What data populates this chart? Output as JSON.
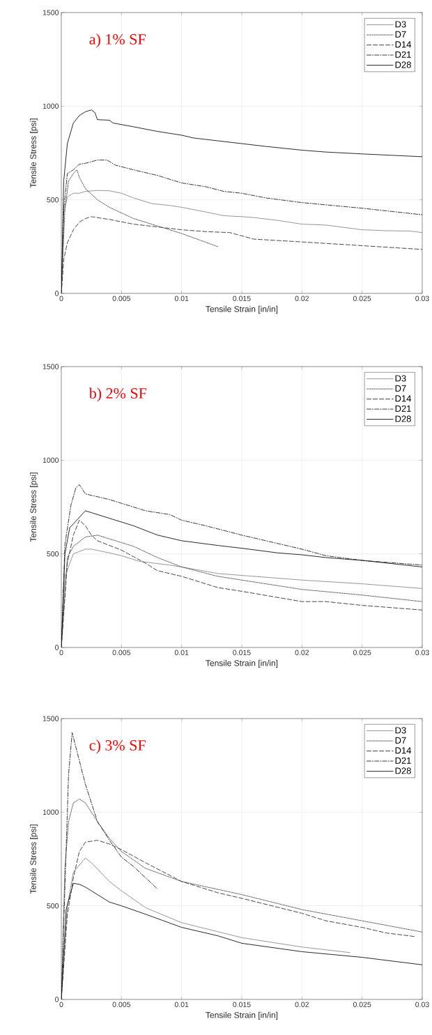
{
  "chart_data": [
    {
      "type": "line",
      "title": "a) 1% SF",
      "xlabel": "Tensile Strain [in/in]",
      "ylabel": "Tensile Stress [psi]",
      "xlim": [
        0,
        0.03
      ],
      "ylim": [
        0,
        1500
      ],
      "xticks": [
        0,
        0.005,
        0.01,
        0.015,
        0.02,
        0.025,
        0.03
      ],
      "yticks": [
        0,
        500,
        1000,
        1500
      ],
      "grid": true,
      "legend": "top right",
      "series": [
        {
          "name": "D3",
          "color": "#8a8a8a",
          "line_style": "solid",
          "x": [
            0,
            0.0002,
            0.0005,
            0.001,
            0.0015,
            0.002,
            0.003,
            0.004,
            0.005,
            0.006,
            0.0075,
            0.009,
            0.01,
            0.012,
            0.0135,
            0.015,
            0.016,
            0.018,
            0.02,
            0.022,
            0.025,
            0.027,
            0.029,
            0.03
          ],
          "values": [
            0,
            430,
            515,
            535,
            535,
            545,
            550,
            548,
            535,
            510,
            480,
            470,
            460,
            435,
            415,
            410,
            405,
            390,
            370,
            365,
            340,
            335,
            333,
            325
          ]
        },
        {
          "name": "D7",
          "color": "#444444",
          "line_style": "dotted",
          "x": [
            0,
            0.0003,
            0.0006,
            0.001,
            0.0013,
            0.0015,
            0.002,
            0.003,
            0.004,
            0.005,
            0.006,
            0.008,
            0.01,
            0.0115,
            0.013
          ],
          "values": [
            0,
            450,
            600,
            640,
            660,
            620,
            560,
            500,
            460,
            430,
            400,
            360,
            320,
            285,
            250
          ]
        },
        {
          "name": "D14",
          "color": "#333333",
          "line_style": "dashed",
          "x": [
            0,
            0.0002,
            0.0005,
            0.001,
            0.0015,
            0.002,
            0.0025,
            0.004,
            0.006,
            0.008,
            0.01,
            0.012,
            0.014,
            0.016,
            0.02,
            0.025,
            0.03
          ],
          "values": [
            0,
            180,
            270,
            340,
            380,
            400,
            410,
            395,
            370,
            355,
            340,
            330,
            325,
            290,
            275,
            255,
            235
          ]
        },
        {
          "name": "D21",
          "color": "#222222",
          "line_style": "dashdot",
          "x": [
            0,
            0.0002,
            0.0005,
            0.001,
            0.0015,
            0.002,
            0.003,
            0.0038,
            0.0045,
            0.006,
            0.008,
            0.01,
            0.012,
            0.0135,
            0.015,
            0.017,
            0.02,
            0.025,
            0.03
          ],
          "values": [
            0,
            450,
            640,
            660,
            690,
            695,
            712,
            712,
            685,
            660,
            630,
            590,
            570,
            545,
            535,
            510,
            485,
            455,
            420
          ]
        },
        {
          "name": "D28",
          "color": "#111111",
          "line_style": "solid",
          "x": [
            0,
            0.0002,
            0.0005,
            0.001,
            0.0015,
            0.002,
            0.0025,
            0.0028,
            0.003,
            0.004,
            0.0043,
            0.006,
            0.008,
            0.01,
            0.011,
            0.013,
            0.015,
            0.017,
            0.02,
            0.022,
            0.025,
            0.03
          ],
          "values": [
            0,
            600,
            800,
            910,
            950,
            970,
            980,
            965,
            928,
            925,
            910,
            890,
            865,
            845,
            830,
            815,
            800,
            785,
            765,
            755,
            745,
            730
          ]
        }
      ]
    },
    {
      "type": "line",
      "title": "b) 2% SF",
      "xlabel": "Tensile Strain [in/in]",
      "ylabel": "Tensile Stress [psi]",
      "xlim": [
        0,
        0.03
      ],
      "ylim": [
        0,
        1500
      ],
      "xticks": [
        0,
        0.005,
        0.01,
        0.015,
        0.02,
        0.025,
        0.03
      ],
      "yticks": [
        0,
        500,
        1000,
        1500
      ],
      "grid": true,
      "legend": "top right",
      "series": [
        {
          "name": "D3",
          "color": "#8a8a8a",
          "line_style": "solid",
          "x": [
            0,
            0.0003,
            0.001,
            0.002,
            0.0025,
            0.004,
            0.005,
            0.0065,
            0.009,
            0.01,
            0.013,
            0.015,
            0.02,
            0.025,
            0.03
          ],
          "values": [
            0,
            380,
            500,
            525,
            525,
            505,
            490,
            460,
            440,
            430,
            395,
            385,
            360,
            340,
            315
          ]
        },
        {
          "name": "D7",
          "color": "#444444",
          "line_style": "dotted",
          "x": [
            0,
            0.0005,
            0.001,
            0.002,
            0.003,
            0.004,
            0.005,
            0.006,
            0.008,
            0.01,
            0.013,
            0.015,
            0.02,
            0.025,
            0.03
          ],
          "values": [
            0,
            480,
            540,
            590,
            600,
            580,
            560,
            540,
            480,
            430,
            380,
            360,
            310,
            280,
            245
          ]
        },
        {
          "name": "D14",
          "color": "#333333",
          "line_style": "dashed",
          "x": [
            0,
            0.0005,
            0.001,
            0.0015,
            0.002,
            0.0025,
            0.003,
            0.005,
            0.007,
            0.008,
            0.01,
            0.013,
            0.015,
            0.02,
            0.022,
            0.025,
            0.03
          ],
          "values": [
            0,
            450,
            600,
            680,
            650,
            600,
            570,
            520,
            450,
            410,
            380,
            320,
            300,
            245,
            245,
            225,
            200
          ]
        },
        {
          "name": "D21",
          "color": "#222222",
          "line_style": "dashdot",
          "x": [
            0,
            0.0003,
            0.0008,
            0.0012,
            0.0015,
            0.0018,
            0.002,
            0.004,
            0.005,
            0.007,
            0.009,
            0.01,
            0.012,
            0.015,
            0.019,
            0.02,
            0.022,
            0.025,
            0.03
          ],
          "values": [
            0,
            550,
            760,
            850,
            870,
            840,
            820,
            790,
            770,
            730,
            710,
            680,
            650,
            600,
            540,
            525,
            490,
            465,
            440
          ]
        },
        {
          "name": "D28",
          "color": "#111111",
          "line_style": "solid",
          "x": [
            0,
            0.0003,
            0.0007,
            0.001,
            0.002,
            0.0025,
            0.004,
            0.006,
            0.008,
            0.01,
            0.013,
            0.015,
            0.018,
            0.02,
            0.022,
            0.025,
            0.03
          ],
          "values": [
            0,
            500,
            640,
            660,
            730,
            720,
            690,
            650,
            600,
            570,
            545,
            530,
            505,
            495,
            480,
            465,
            430
          ]
        }
      ]
    },
    {
      "type": "line",
      "title": "c) 3% SF",
      "xlabel": "Tensile Strain [in/in]",
      "ylabel": "Tensile Stress [psi]",
      "xlim": [
        0,
        0.03
      ],
      "ylim": [
        0,
        1500
      ],
      "xticks": [
        0,
        0.005,
        0.01,
        0.015,
        0.02,
        0.025,
        0.03
      ],
      "yticks": [
        0,
        500,
        1000,
        1500
      ],
      "grid": true,
      "legend": "top right",
      "series": [
        {
          "name": "D3",
          "color": "#8a8a8a",
          "line_style": "solid",
          "x": [
            0,
            0.0005,
            0.001,
            0.002,
            0.0025,
            0.004,
            0.005,
            0.007,
            0.01,
            0.015,
            0.02,
            0.024
          ],
          "values": [
            0,
            500,
            680,
            755,
            730,
            630,
            580,
            490,
            410,
            330,
            280,
            250
          ]
        },
        {
          "name": "D7",
          "color": "#444444",
          "line_style": "dotted",
          "x": [
            0,
            0.0003,
            0.0006,
            0.001,
            0.0015,
            0.002,
            0.003,
            0.004,
            0.005,
            0.007,
            0.01,
            0.015,
            0.02,
            0.025,
            0.03
          ],
          "values": [
            0,
            700,
            950,
            1050,
            1070,
            1050,
            950,
            860,
            790,
            700,
            630,
            560,
            480,
            420,
            360
          ]
        },
        {
          "name": "D14",
          "color": "#333333",
          "line_style": "dashed",
          "x": [
            0,
            0.0005,
            0.001,
            0.0015,
            0.002,
            0.003,
            0.004,
            0.005,
            0.007,
            0.01,
            0.013,
            0.015,
            0.02,
            0.022,
            0.025,
            0.027,
            0.0295
          ],
          "values": [
            0,
            450,
            650,
            790,
            840,
            850,
            830,
            800,
            730,
            630,
            570,
            540,
            460,
            420,
            385,
            355,
            335
          ]
        },
        {
          "name": "D21",
          "color": "#222222",
          "line_style": "dashdot",
          "x": [
            0,
            0.0003,
            0.0006,
            0.0009,
            0.0012,
            0.002,
            0.003,
            0.004,
            0.005,
            0.006,
            0.007,
            0.008
          ],
          "values": [
            0,
            600,
            1200,
            1425,
            1350,
            1150,
            950,
            850,
            760,
            710,
            650,
            590
          ]
        },
        {
          "name": "D28",
          "color": "#111111",
          "line_style": "solid",
          "x": [
            0,
            0.0004,
            0.001,
            0.0015,
            0.002,
            0.003,
            0.004,
            0.005,
            0.007,
            0.01,
            0.013,
            0.015,
            0.02,
            0.025,
            0.03
          ],
          "values": [
            0,
            480,
            620,
            615,
            600,
            560,
            520,
            500,
            455,
            385,
            340,
            300,
            255,
            225,
            185
          ]
        }
      ]
    }
  ]
}
